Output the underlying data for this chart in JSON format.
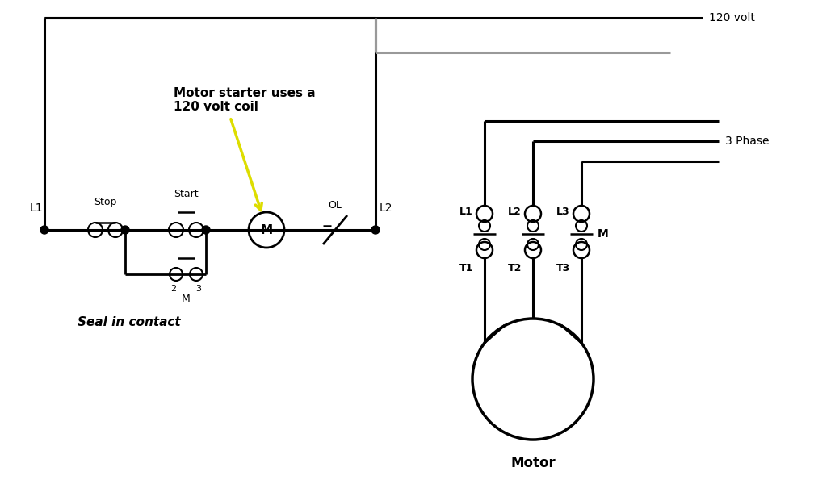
{
  "bg_color": "#ffffff",
  "line_color": "#000000",
  "gray_line_color": "#999999",
  "yellow_color": "#dddd00",
  "figsize": [
    10.08,
    6.0
  ],
  "dpi": 100,
  "labels": {
    "L1": "L1",
    "L2": "L2",
    "Stop": "Stop",
    "Start": "Start",
    "M_coil": "M",
    "OL": "OL",
    "M_seal": "M",
    "two": "2",
    "three": "3",
    "seal_in": "Seal in contact",
    "annotation": "Motor starter uses a\n120 volt coil",
    "volt120": "120 volt",
    "phase3": "3 Phase",
    "motor_label": "Motor",
    "L1r": "L1",
    "L2r": "L2",
    "L3r": "L3",
    "T1": "T1",
    "T2": "T2",
    "T3": "T3",
    "Mr": "M"
  }
}
